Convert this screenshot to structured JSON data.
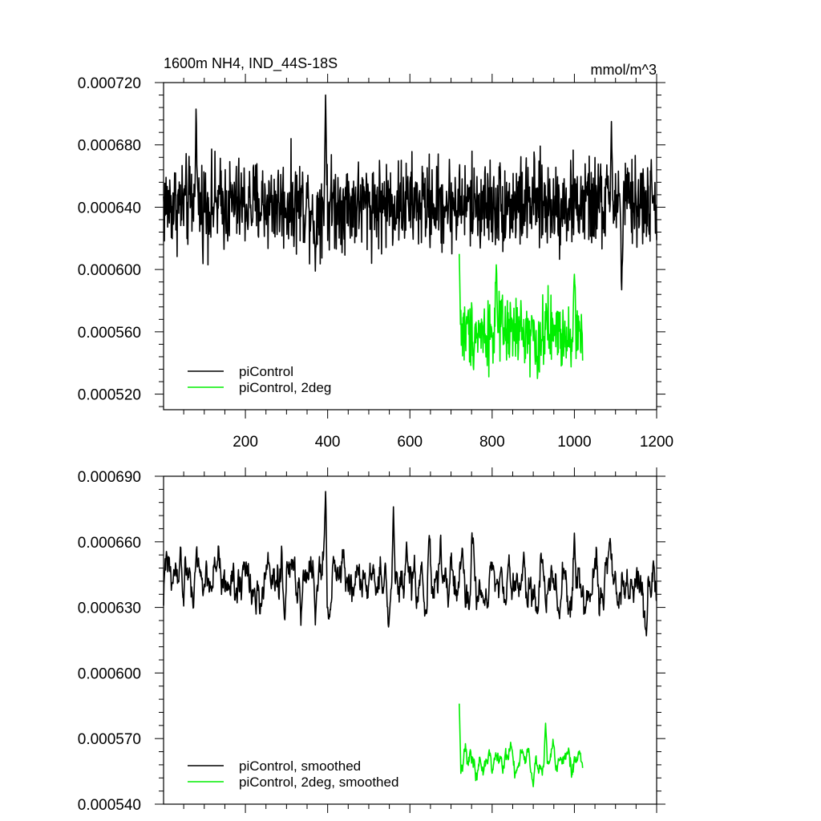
{
  "chart_data": [
    {
      "type": "line",
      "title": "1600m NH4, IND_44S-18S",
      "units": "mmol/m^3",
      "xlim": [
        1,
        1200
      ],
      "ylim": [
        0.00051,
        0.00072
      ],
      "x_ticks": [
        200,
        400,
        600,
        800,
        1000,
        1200
      ],
      "x_tick_labels": [
        "200",
        "400",
        "600",
        "800",
        "1000",
        "1200"
      ],
      "y_ticks": [
        0.00052,
        0.00056,
        0.0006,
        0.00064,
        0.00068,
        0.00072
      ],
      "y_tick_labels": [
        "0.000520",
        "0.000560",
        "0.000600",
        "0.000640",
        "0.000680",
        "0.000720"
      ],
      "legend_position": "bottom-left",
      "series": [
        {
          "name": "piControl",
          "color": "#000000",
          "x_start": 1,
          "x_end": 1200,
          "mean": 0.000642,
          "spread": 1.8e-05,
          "min": 0.000587,
          "max": 0.000712,
          "peaks": [
            [
              80,
              0.000703
            ],
            [
              395,
              0.000712
            ],
            [
              1090,
              0.000695
            ]
          ],
          "troughs": [
            [
              370,
              0.000599
            ],
            [
              1115,
              0.000587
            ]
          ]
        },
        {
          "name": "piControl, 2deg",
          "color": "#00ee00",
          "x_start": 720,
          "x_end": 1020,
          "mean": 0.00056,
          "spread": 1.4e-05,
          "min": 0.00053,
          "max": 0.00061,
          "peaks": [
            [
              720,
              0.00061
            ],
            [
              810,
              0.000603
            ],
            [
              1000,
              0.000597
            ]
          ],
          "troughs": [
            [
              910,
              0.00053
            ]
          ]
        }
      ]
    },
    {
      "type": "line",
      "title": "",
      "xlim": [
        1,
        1200
      ],
      "ylim": [
        0.00054,
        0.00069
      ],
      "y_ticks": [
        0.00054,
        0.00057,
        0.0006,
        0.00063,
        0.00066,
        0.00069
      ],
      "y_tick_labels": [
        "0.000540",
        "0.000570",
        "0.000600",
        "0.000630",
        "0.000660",
        "0.000690"
      ],
      "legend_position": "bottom-left",
      "series": [
        {
          "name": "piControl, smoothed",
          "color": "#000000",
          "x_start": 1,
          "x_end": 1200,
          "mean": 0.000642,
          "spread": 1.1e-05,
          "min": 0.000617,
          "max": 0.000683,
          "peaks": [
            [
              395,
              0.000683
            ],
            [
              560,
              0.000676
            ],
            [
              1000,
              0.000664
            ]
          ],
          "troughs": [
            [
              370,
              0.000622
            ],
            [
              1175,
              0.000617
            ]
          ]
        },
        {
          "name": "piControl, 2deg, smoothed",
          "color": "#00ee00",
          "x_start": 720,
          "x_end": 1020,
          "mean": 0.00056,
          "spread": 5e-06,
          "min": 0.000548,
          "max": 0.000586,
          "peaks": [
            [
              720,
              0.000586
            ],
            [
              930,
              0.000577
            ]
          ],
          "troughs": [
            [
              900,
              0.000548
            ]
          ]
        }
      ]
    }
  ]
}
